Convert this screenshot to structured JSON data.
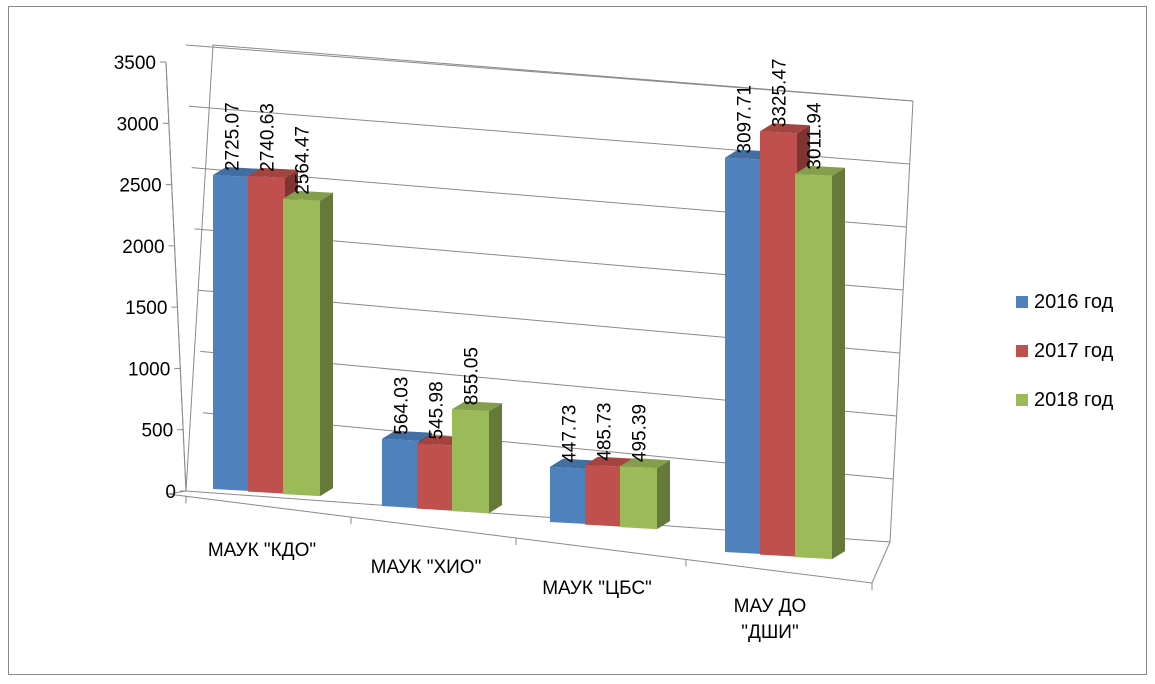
{
  "chart_data": {
    "type": "bar",
    "title": "",
    "xlabel": "",
    "ylabel": "",
    "ylim": [
      0,
      3500
    ],
    "yticks": [
      0,
      500,
      1000,
      1500,
      2000,
      2500,
      3000,
      3500
    ],
    "categories": [
      "МАУК \"КДО\"",
      "МАУК \"ХИО\"",
      "МАУК \"ЦБС\"",
      "МАУ ДО \"ДШИ\""
    ],
    "series": [
      {
        "name": "2016 год",
        "color": "#4F81BD",
        "values": [
          2725.07,
          564.03,
          447.73,
          3097.71
        ]
      },
      {
        "name": "2017 год",
        "color": "#C0504D",
        "values": [
          2740.63,
          545.98,
          485.73,
          3325.47
        ]
      },
      {
        "name": "2018 год",
        "color": "#9BBB59",
        "values": [
          2564.47,
          855.05,
          495.39,
          3011.94
        ]
      }
    ],
    "grid": true,
    "legend_position": "right",
    "style": "3d-clustered-column"
  }
}
